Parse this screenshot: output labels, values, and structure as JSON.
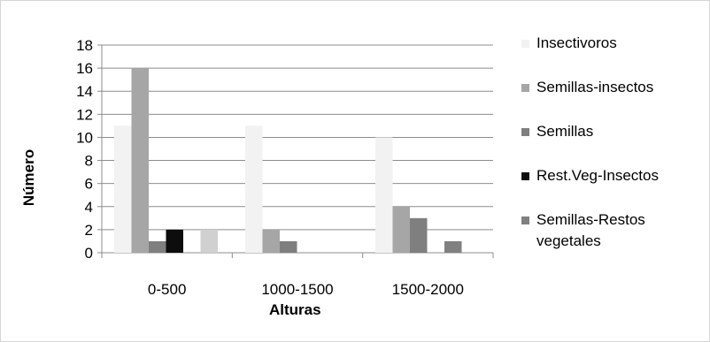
{
  "chart_data": {
    "type": "bar",
    "title": "",
    "xlabel": "Alturas",
    "ylabel": "Número",
    "ylim": [
      0,
      18
    ],
    "yticks": [
      0,
      2,
      4,
      6,
      8,
      10,
      12,
      14,
      16,
      18
    ],
    "grid": true,
    "legend_position": "right",
    "categories": [
      "0-500",
      "1000-1500",
      "1500-2000"
    ],
    "series": [
      {
        "name": "Insectivoros",
        "color": "#f2f2f2",
        "values": [
          11,
          11,
          10
        ]
      },
      {
        "name": "Semillas-insectos",
        "color": "#a6a6a6",
        "values": [
          16,
          2,
          4
        ]
      },
      {
        "name": "Semillas",
        "color": "#7f7f7f",
        "values": [
          1,
          1,
          3
        ]
      },
      {
        "name": "Rest.Veg-Insectos",
        "color": "#0d0d0d",
        "values": [
          2,
          0,
          0
        ]
      },
      {
        "name": "Semillas-Restos vegetales",
        "color": "#808080",
        "values": [
          0,
          0,
          1
        ]
      },
      {
        "name": "",
        "color": "#d0d0d0",
        "values": [
          2,
          0,
          0
        ]
      }
    ]
  }
}
